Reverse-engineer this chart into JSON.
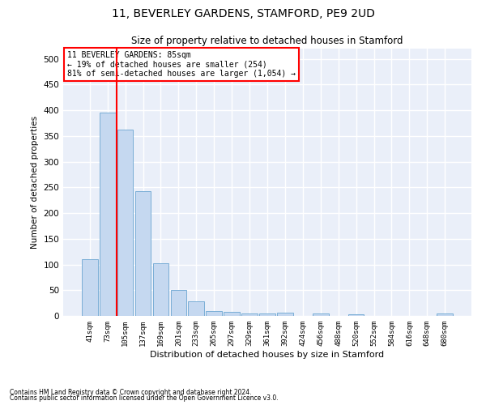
{
  "title1": "11, BEVERLEY GARDENS, STAMFORD, PE9 2UD",
  "title2": "Size of property relative to detached houses in Stamford",
  "xlabel": "Distribution of detached houses by size in Stamford",
  "ylabel": "Number of detached properties",
  "categories": [
    "41sqm",
    "73sqm",
    "105sqm",
    "137sqm",
    "169sqm",
    "201sqm",
    "233sqm",
    "265sqm",
    "297sqm",
    "329sqm",
    "361sqm",
    "392sqm",
    "424sqm",
    "456sqm",
    "488sqm",
    "520sqm",
    "552sqm",
    "584sqm",
    "616sqm",
    "648sqm",
    "680sqm"
  ],
  "values": [
    110,
    395,
    362,
    242,
    103,
    50,
    29,
    10,
    8,
    5,
    5,
    6,
    0,
    4,
    0,
    3,
    0,
    0,
    0,
    0,
    4
  ],
  "bar_color": "#c5d8f0",
  "bar_edge_color": "#7aaed6",
  "property_line_x": 1.5,
  "annotation_text": "11 BEVERLEY GARDENS: 85sqm\n← 19% of detached houses are smaller (254)\n81% of semi-detached houses are larger (1,054) →",
  "annotation_box_color": "white",
  "annotation_box_edge_color": "red",
  "property_line_color": "red",
  "background_color": "#eaeff9",
  "grid_color": "white",
  "ylim": [
    0,
    520
  ],
  "yticks": [
    0,
    50,
    100,
    150,
    200,
    250,
    300,
    350,
    400,
    450,
    500
  ],
  "footnote1": "Contains HM Land Registry data © Crown copyright and database right 2024.",
  "footnote2": "Contains public sector information licensed under the Open Government Licence v3.0."
}
